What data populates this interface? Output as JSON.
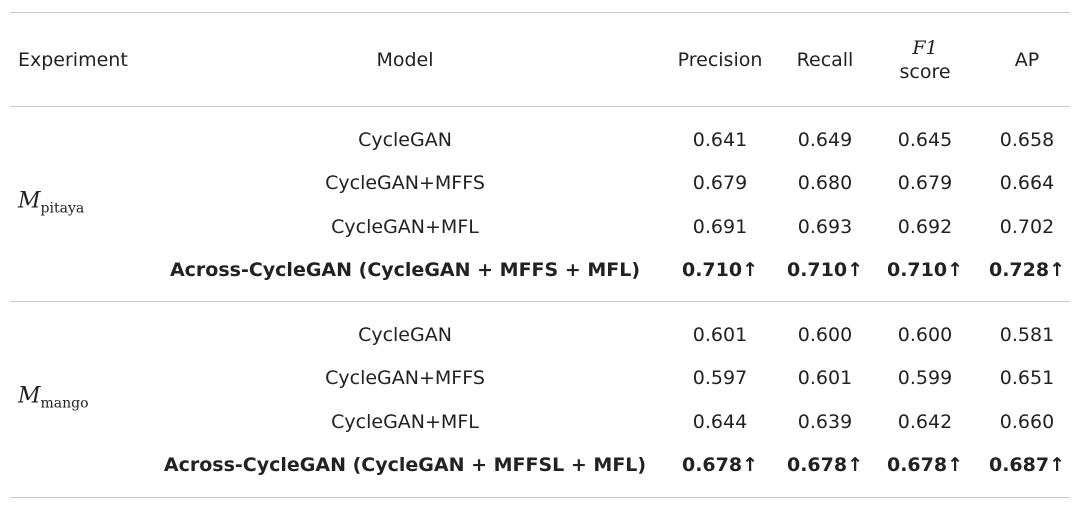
{
  "table": {
    "columns": [
      "Experiment",
      "Model",
      "Precision",
      "Recall",
      {
        "symbol": "F1",
        "text": "score"
      },
      "AP"
    ],
    "groups": [
      {
        "experiment": {
          "symbol": "M",
          "subscript": "pitaya"
        },
        "rows": [
          {
            "model": "CycleGAN",
            "values": [
              "0.641",
              "0.649",
              "0.645",
              "0.658"
            ]
          },
          {
            "model": "CycleGAN+MFFS",
            "values": [
              "0.679",
              "0.680",
              "0.679",
              "0.664"
            ]
          },
          {
            "model": "CycleGAN+MFL",
            "values": [
              "0.691",
              "0.693",
              "0.692",
              "0.702"
            ]
          },
          {
            "model": "Across-CycleGAN (CycleGAN + MFFS + MFL)",
            "values": [
              "0.710↑",
              "0.710↑",
              "0.710↑",
              "0.728↑"
            ],
            "bold": true
          }
        ]
      },
      {
        "experiment": {
          "symbol": "M",
          "subscript": "mango"
        },
        "rows": [
          {
            "model": "CycleGAN",
            "values": [
              "0.601",
              "0.600",
              "0.600",
              "0.581"
            ]
          },
          {
            "model": "CycleGAN+MFFS",
            "values": [
              "0.597",
              "0.601",
              "0.599",
              "0.651"
            ]
          },
          {
            "model": "CycleGAN+MFL",
            "values": [
              "0.644",
              "0.639",
              "0.642",
              "0.660"
            ]
          },
          {
            "model": "Across-CycleGAN (CycleGAN + MFFSL + MFL)",
            "values": [
              "0.678↑",
              "0.678↑",
              "0.678↑",
              "0.687↑"
            ],
            "bold": true
          }
        ]
      }
    ]
  }
}
